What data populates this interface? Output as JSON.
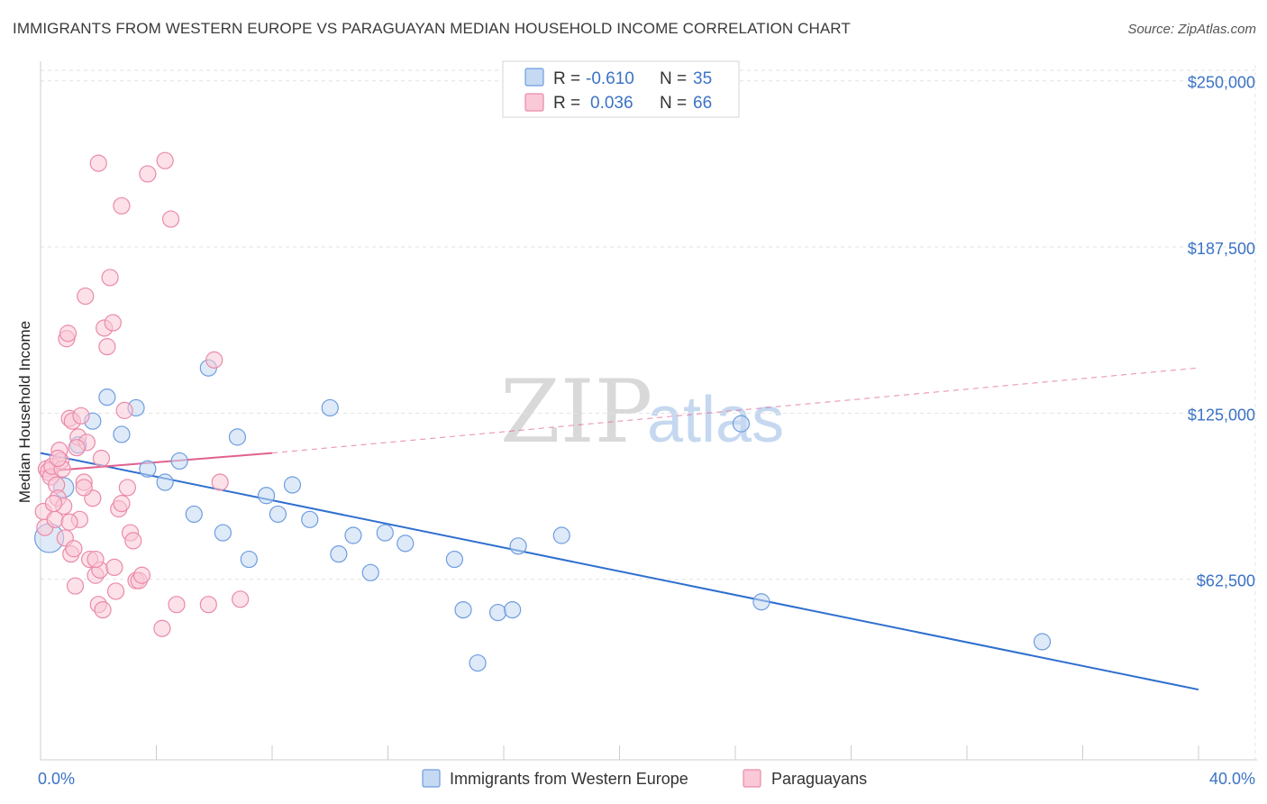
{
  "title": "IMMIGRANTS FROM WESTERN EUROPE VS PARAGUAYAN MEDIAN HOUSEHOLD INCOME CORRELATION CHART",
  "source": "Source: ZipAtlas.com",
  "watermark": {
    "part1": "ZIP",
    "part2": "atlas"
  },
  "colors": {
    "blue_fill": "#c5d9f2",
    "blue_stroke": "#6d9de0",
    "blue_line": "#2f6fcf",
    "pink_fill": "#f9c9d7",
    "pink_stroke": "#ea8aa8",
    "pink_line": "#e0628e",
    "tick_label": "#3b73c6",
    "grid": "#e2e2e2"
  },
  "legend": {
    "rows": [
      {
        "r_label": "R =",
        "r_value": "-0.610",
        "n_label": "N =",
        "n_value": "35",
        "series": "blue"
      },
      {
        "r_label": "R =",
        "r_value": "0.036",
        "n_label": "N =",
        "n_value": "66",
        "series": "pink"
      }
    ]
  },
  "bottom_legend": [
    "Immigrants from Western Europe",
    "Paraguayans"
  ],
  "chart_data": {
    "type": "scatter",
    "title": "IMMIGRANTS FROM WESTERN EUROPE VS PARAGUAYAN MEDIAN HOUSEHOLD INCOME CORRELATION CHART",
    "xlabel": "",
    "ylabel": "Median Household Income",
    "xlim": [
      0,
      40
    ],
    "ylim": [
      0,
      256000
    ],
    "x_tick_labels": [
      {
        "value": 0,
        "label": "0.0%"
      },
      {
        "value": 40,
        "label": "40.0%"
      }
    ],
    "x_minor_ticks": [
      0,
      4,
      8,
      12,
      16,
      20,
      24,
      28,
      32,
      36,
      40
    ],
    "y_ticks": [
      {
        "value": 62500,
        "label": "$62,500"
      },
      {
        "value": 125000,
        "label": "$125,000"
      },
      {
        "value": 187500,
        "label": "$187,500"
      },
      {
        "value": 250000,
        "label": "$250,000"
      }
    ],
    "series": [
      {
        "name": "Immigrants from Western Europe",
        "color": "blue",
        "points": [
          [
            0.3,
            78000,
            16
          ],
          [
            0.8,
            97000,
            11
          ],
          [
            1.3,
            113000,
            9
          ],
          [
            1.8,
            122000,
            9
          ],
          [
            2.3,
            131000,
            9
          ],
          [
            2.8,
            117000,
            9
          ],
          [
            3.3,
            127000,
            9
          ],
          [
            3.7,
            104000,
            9
          ],
          [
            4.3,
            99000,
            9
          ],
          [
            4.8,
            107000,
            9
          ],
          [
            5.3,
            87000,
            9
          ],
          [
            5.8,
            142000,
            9
          ],
          [
            6.3,
            80000,
            9
          ],
          [
            6.8,
            116000,
            9
          ],
          [
            7.2,
            70000,
            9
          ],
          [
            7.8,
            94000,
            9
          ],
          [
            8.2,
            87000,
            9
          ],
          [
            8.7,
            98000,
            9
          ],
          [
            9.3,
            85000,
            9
          ],
          [
            10.0,
            127000,
            9
          ],
          [
            10.3,
            72000,
            9
          ],
          [
            10.8,
            79000,
            9
          ],
          [
            11.4,
            65000,
            9
          ],
          [
            11.9,
            80000,
            9
          ],
          [
            12.6,
            76000,
            9
          ],
          [
            14.3,
            70000,
            9
          ],
          [
            14.6,
            51000,
            9
          ],
          [
            15.1,
            31000,
            9
          ],
          [
            15.8,
            50000,
            9
          ],
          [
            16.3,
            51000,
            9
          ],
          [
            16.5,
            75000,
            9
          ],
          [
            18.0,
            79000,
            9
          ],
          [
            24.2,
            121000,
            9
          ],
          [
            24.9,
            54000,
            9
          ],
          [
            34.6,
            39000,
            9
          ]
        ],
        "trend": {
          "x": [
            0,
            40
          ],
          "y": [
            110000,
            21000
          ]
        }
      },
      {
        "name": "Paraguayans",
        "color": "pink",
        "points": [
          [
            0.1,
            88000,
            9
          ],
          [
            0.15,
            82000,
            9
          ],
          [
            0.2,
            104000,
            9
          ],
          [
            0.3,
            103000,
            10
          ],
          [
            0.35,
            101000,
            9
          ],
          [
            0.4,
            105000,
            9
          ],
          [
            0.5,
            85000,
            9
          ],
          [
            0.55,
            98000,
            9
          ],
          [
            0.6,
            93000,
            9
          ],
          [
            0.65,
            111000,
            9
          ],
          [
            0.7,
            107000,
            9
          ],
          [
            0.75,
            104000,
            9
          ],
          [
            0.8,
            90000,
            9
          ],
          [
            0.85,
            78000,
            9
          ],
          [
            0.9,
            153000,
            9
          ],
          [
            0.95,
            155000,
            9
          ],
          [
            1.0,
            123000,
            9
          ],
          [
            1.05,
            72000,
            9
          ],
          [
            1.1,
            122000,
            9
          ],
          [
            1.15,
            74000,
            9
          ],
          [
            1.2,
            60000,
            9
          ],
          [
            1.3,
            116000,
            9
          ],
          [
            1.35,
            85000,
            9
          ],
          [
            1.4,
            124000,
            9
          ],
          [
            1.5,
            99000,
            9
          ],
          [
            1.55,
            169000,
            9
          ],
          [
            1.6,
            114000,
            9
          ],
          [
            1.7,
            70000,
            9
          ],
          [
            1.8,
            93000,
            9
          ],
          [
            1.9,
            64000,
            9
          ],
          [
            2.0,
            53000,
            9
          ],
          [
            2.05,
            66000,
            9
          ],
          [
            2.1,
            108000,
            9
          ],
          [
            2.2,
            157000,
            9
          ],
          [
            2.3,
            150000,
            9
          ],
          [
            2.4,
            176000,
            9
          ],
          [
            2.5,
            159000,
            9
          ],
          [
            2.55,
            67000,
            9
          ],
          [
            2.6,
            58000,
            9
          ],
          [
            2.7,
            89000,
            9
          ],
          [
            2.8,
            91000,
            9
          ],
          [
            2.9,
            126000,
            9
          ],
          [
            3.0,
            97000,
            9
          ],
          [
            3.1,
            80000,
            9
          ],
          [
            3.2,
            77000,
            9
          ],
          [
            3.3,
            62000,
            9
          ],
          [
            3.4,
            62000,
            9
          ],
          [
            3.5,
            64000,
            9
          ],
          [
            2.0,
            219000,
            9
          ],
          [
            2.8,
            203000,
            9
          ],
          [
            3.7,
            215000,
            9
          ],
          [
            4.3,
            220000,
            9
          ],
          [
            4.5,
            198000,
            9
          ],
          [
            4.2,
            44000,
            9
          ],
          [
            4.7,
            53000,
            9
          ],
          [
            5.8,
            53000,
            9
          ],
          [
            6.0,
            145000,
            9
          ],
          [
            6.2,
            99000,
            9
          ],
          [
            6.9,
            55000,
            9
          ],
          [
            1.5,
            97000,
            9
          ],
          [
            1.0,
            84000,
            9
          ],
          [
            0.6,
            108000,
            9
          ],
          [
            1.25,
            112000,
            9
          ],
          [
            0.45,
            91000,
            9
          ],
          [
            1.9,
            70000,
            9
          ],
          [
            2.15,
            51000,
            9
          ]
        ],
        "trend_solid": {
          "x": [
            0,
            8.0
          ],
          "y": [
            103000,
            110000
          ]
        },
        "trend_dashed": {
          "x": [
            8.0,
            40
          ],
          "y": [
            110000,
            142000
          ]
        }
      }
    ]
  }
}
